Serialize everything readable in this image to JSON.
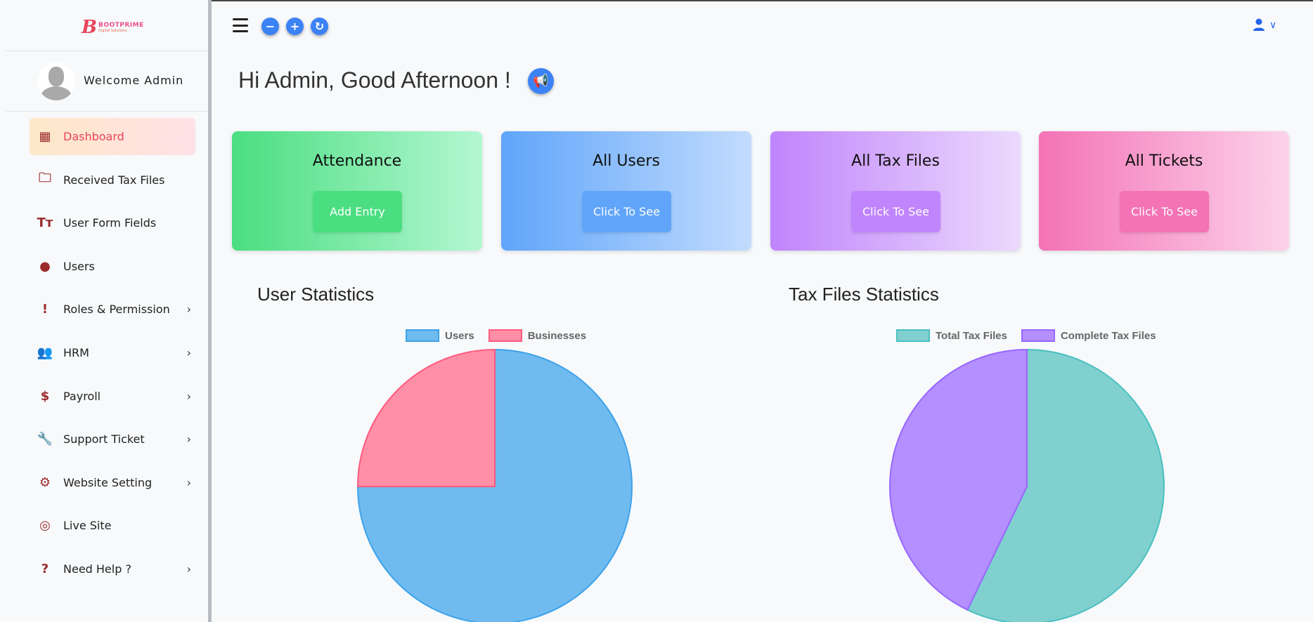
{
  "logo": {
    "brand": "BOOTPRIME",
    "tagline": "Digital Solutions"
  },
  "sidebar": {
    "welcome": "Welcome Admin",
    "items": [
      {
        "label": "Dashboard",
        "icon": "dashboard-icon",
        "glyph": "▦",
        "active": true,
        "chevron": false
      },
      {
        "label": "Received Tax Files",
        "icon": "folder-icon",
        "glyph": "🗀",
        "chevron": false
      },
      {
        "label": "User Form Fields",
        "icon": "text-icon",
        "glyph": "Tт",
        "chevron": false
      },
      {
        "label": "Users",
        "icon": "user-circle-icon",
        "glyph": "●",
        "chevron": false
      },
      {
        "label": "Roles & Permission",
        "icon": "alert-icon",
        "glyph": "!",
        "chevron": true
      },
      {
        "label": "HRM",
        "icon": "users-icon",
        "glyph": "👥",
        "chevron": true
      },
      {
        "label": "Payroll",
        "icon": "dollar-icon",
        "glyph": "$",
        "chevron": true
      },
      {
        "label": "Support Ticket",
        "icon": "wrench-icon",
        "glyph": "🔧",
        "chevron": true
      },
      {
        "label": "Website Setting",
        "icon": "gear-icon",
        "glyph": "⚙",
        "chevron": true
      },
      {
        "label": "Live Site",
        "icon": "live-site-icon",
        "glyph": "◎",
        "chevron": false
      },
      {
        "label": "Need Help ?",
        "icon": "help-icon",
        "glyph": "?",
        "chevron": true
      }
    ],
    "chevron": "›"
  },
  "header": {
    "minus": "−",
    "plus": "+",
    "reset": "↻",
    "user_icon": "user-icon",
    "chevron": "∨"
  },
  "greeting": "Hi Admin, Good Afternoon !",
  "cards": [
    {
      "title": "Attendance",
      "button": "Add Entry",
      "from": "#4ade80",
      "to": "#b4f7d2",
      "btn": "#4ade80"
    },
    {
      "title": "All Users",
      "button": "Click To See",
      "from": "#60a5fa",
      "to": "#c2dcfe",
      "btn": "#60a5fa"
    },
    {
      "title": "All Tax Files",
      "button": "Click To See",
      "from": "#c084fc",
      "to": "#ecdafd",
      "btn": "#c084fc"
    },
    {
      "title": "All Tickets",
      "button": "Click To See",
      "from": "#f472b6",
      "to": "#fcd3ea",
      "btn": "#f472b6"
    }
  ],
  "chart_data": [
    {
      "type": "pie",
      "title": "User Statistics",
      "categories": [
        "Users",
        "Businesses"
      ],
      "values": [
        3,
        1
      ],
      "colors": [
        "#6fbbef",
        "#ff8fa6"
      ],
      "borders": [
        "#3ea2eb",
        "#ff5a7e"
      ],
      "legend": "top"
    },
    {
      "type": "pie",
      "title": "Tax Files Statistics",
      "categories": [
        "Total Tax Files",
        "Complete Tax Files"
      ],
      "values": [
        4,
        3
      ],
      "colors": [
        "#80d0d0",
        "#b38fff"
      ],
      "borders": [
        "#4ac0c0",
        "#9966ff"
      ],
      "legend": "top"
    }
  ]
}
